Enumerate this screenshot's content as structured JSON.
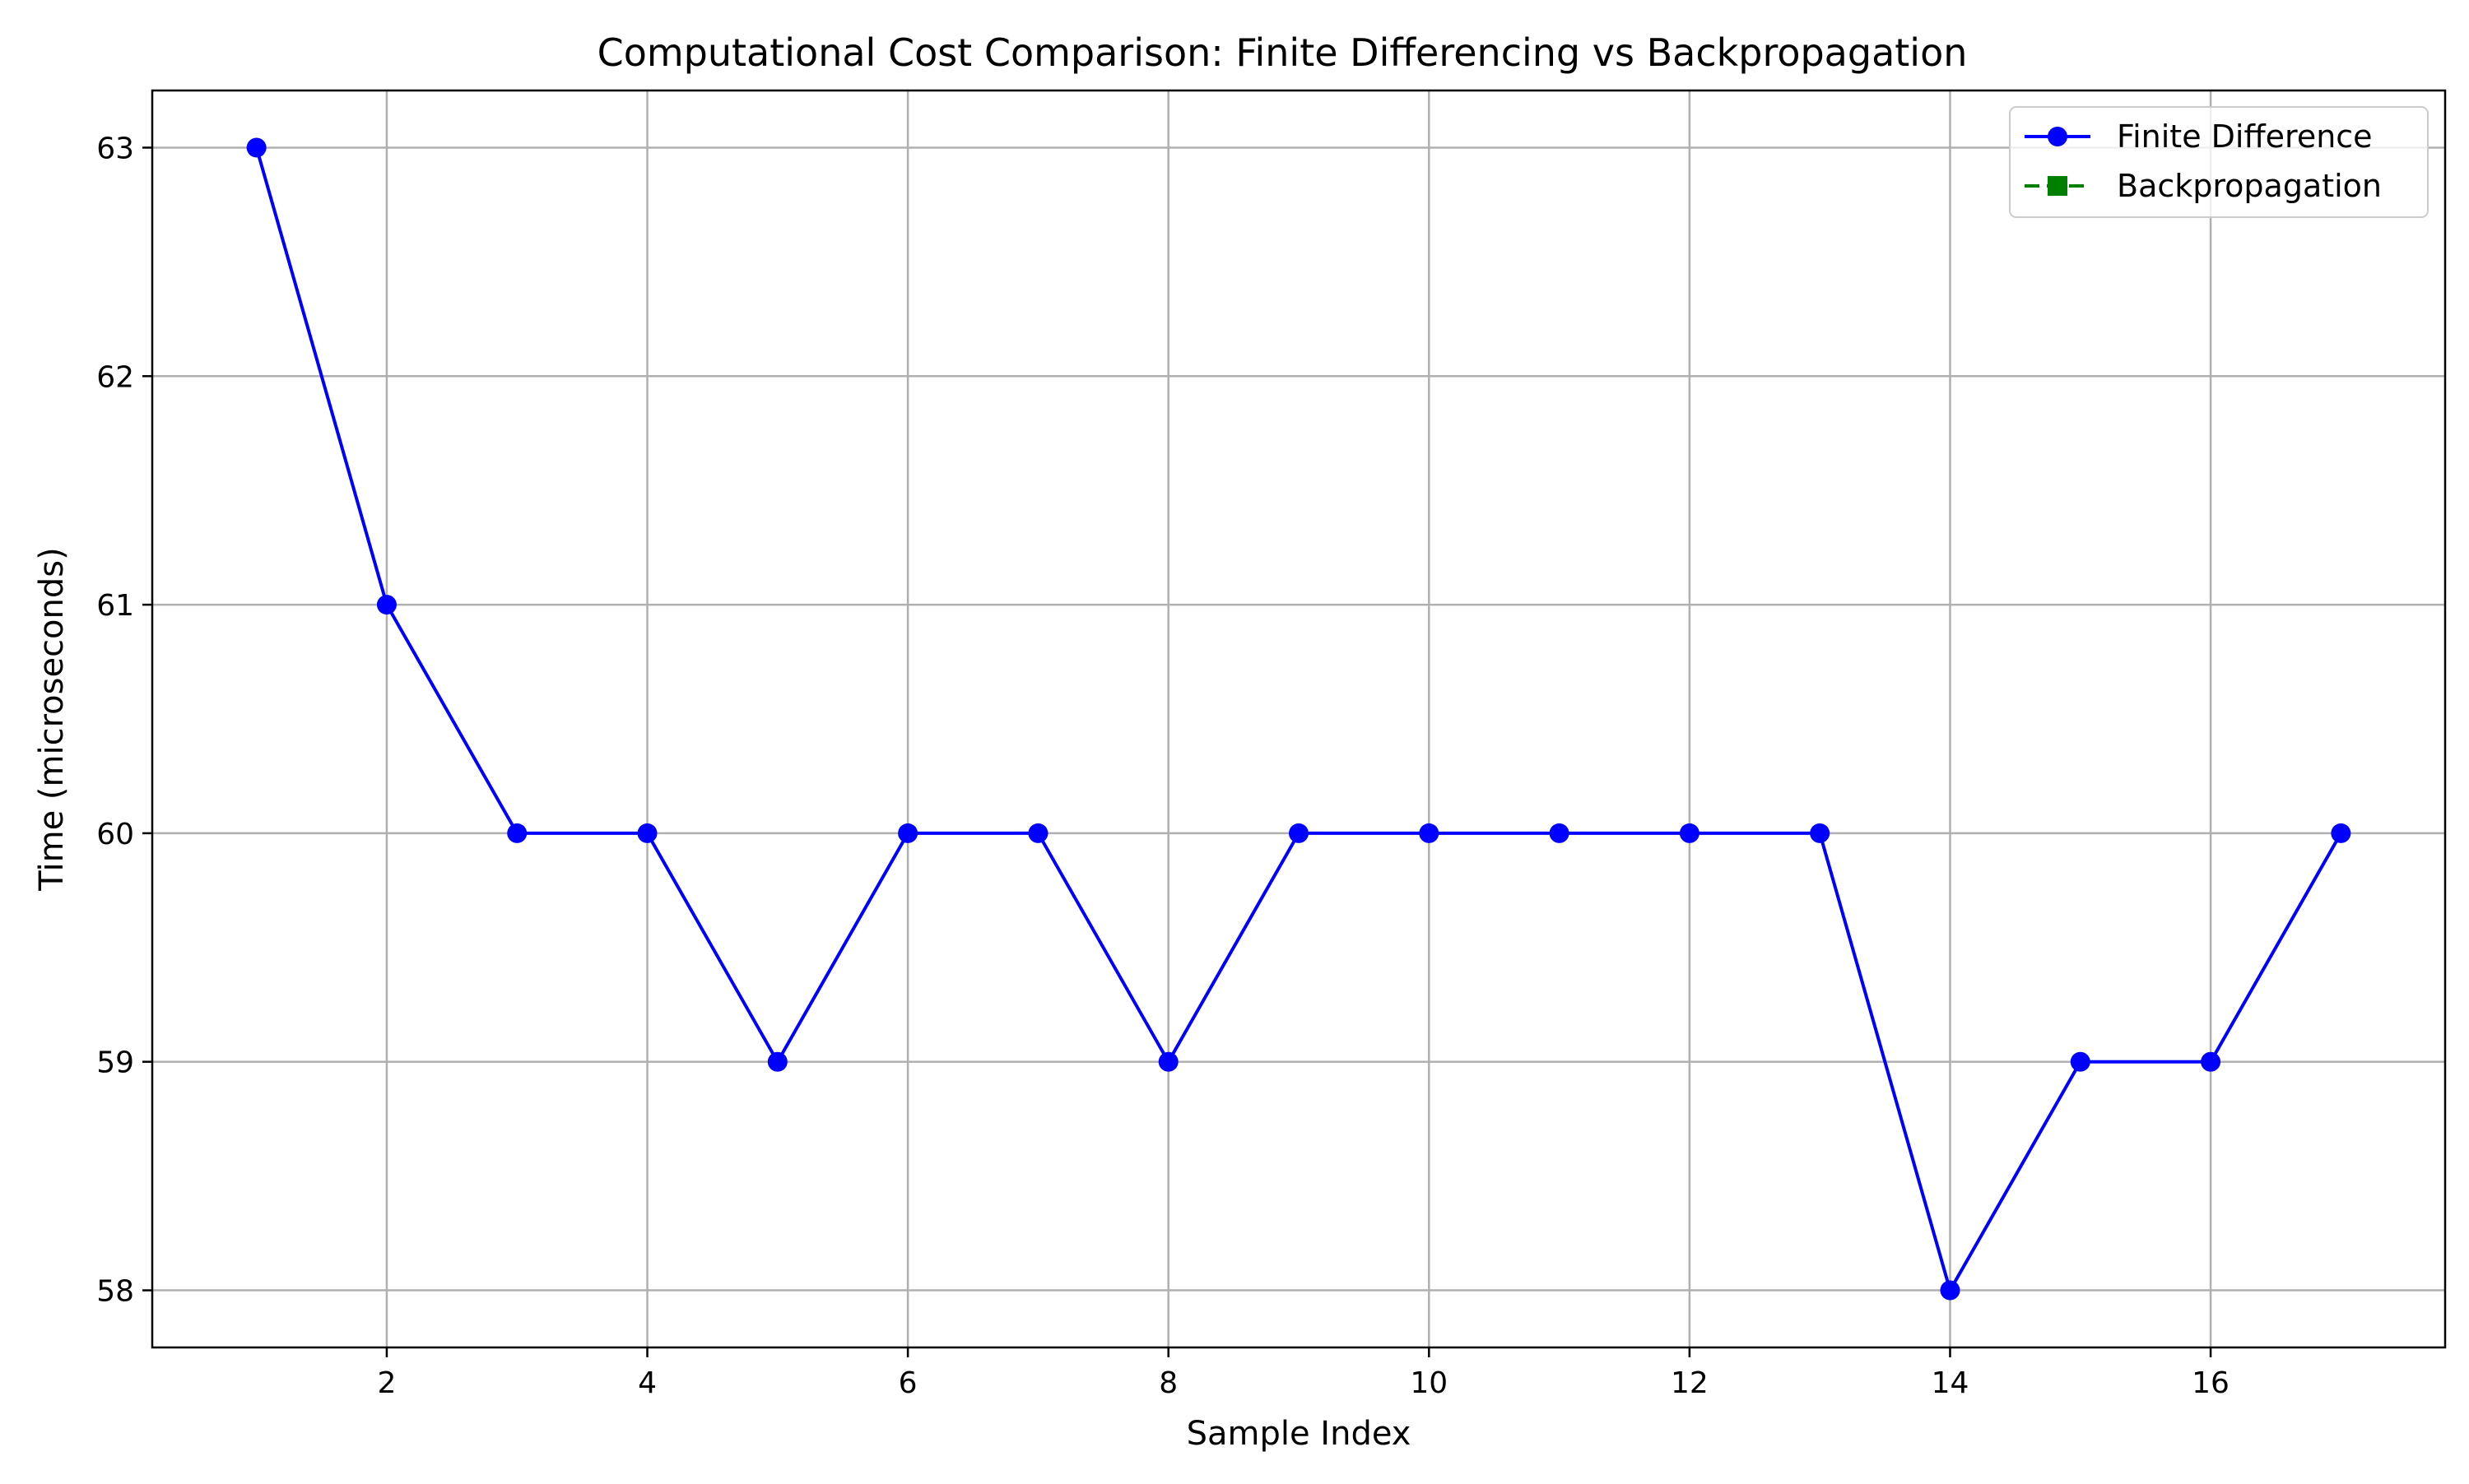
{
  "chart_data": {
    "type": "line",
    "title": "Computational Cost Comparison: Finite Differencing vs Backpropagation",
    "xlabel": "Sample Index",
    "ylabel": "Time (microseconds)",
    "xlim": [
      0.2,
      17.8
    ],
    "ylim": [
      57.75,
      63.25
    ],
    "x_ticks": [
      2,
      4,
      6,
      8,
      10,
      12,
      14,
      16
    ],
    "y_ticks": [
      58,
      59,
      60,
      61,
      62,
      63
    ],
    "grid": true,
    "legend_position": "top-right",
    "series": [
      {
        "name": "Finite Difference",
        "color": "#0000ff",
        "line_style": "solid",
        "marker": "circle",
        "x": [
          1,
          2,
          3,
          4,
          5,
          6,
          7,
          8,
          9,
          10,
          11,
          12,
          13,
          14,
          15,
          16,
          17
        ],
        "values": [
          63,
          61,
          60,
          60,
          59,
          60,
          60,
          59,
          60,
          60,
          60,
          60,
          60,
          58,
          59,
          59,
          60
        ]
      },
      {
        "name": "Backpropagation",
        "color": "#008000",
        "line_style": "dashed",
        "marker": "square",
        "x": [],
        "values": []
      }
    ]
  }
}
